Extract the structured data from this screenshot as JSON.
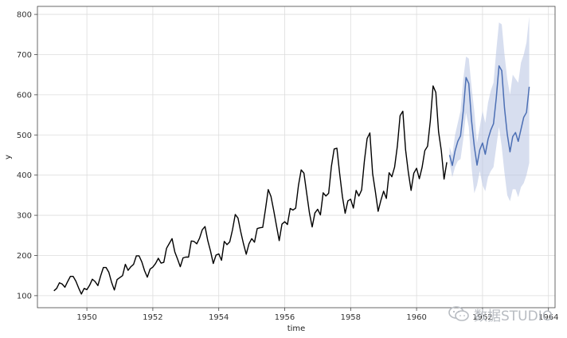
{
  "chart_data": {
    "type": "line",
    "title": "",
    "xlabel": "time",
    "ylabel": "y",
    "xlim": [
      1948.5,
      1964.2
    ],
    "ylim": [
      70,
      820
    ],
    "grid": true,
    "x_ticks": [
      1950,
      1952,
      1954,
      1956,
      1958,
      1960,
      1962,
      1964
    ],
    "x_tick_labels": [
      "1950",
      "1952",
      "1954",
      "1956",
      "1958",
      "1960",
      "1962",
      "1964"
    ],
    "y_ticks": [
      100,
      200,
      300,
      400,
      500,
      600,
      700,
      800
    ],
    "y_tick_labels": [
      "100",
      "200",
      "300",
      "400",
      "500",
      "600",
      "700",
      "800"
    ],
    "colors": {
      "actual": "#000000",
      "forecast": "#4c6fb4",
      "band": "#b6c3e2",
      "grid": "#dddddd"
    },
    "series": [
      {
        "role": "actual",
        "start_year": 1949,
        "start_month": 1,
        "step": "month",
        "values": [
          112,
          118,
          132,
          129,
          121,
          135,
          148,
          148,
          136,
          119,
          104,
          118,
          115,
          126,
          141,
          135,
          125,
          149,
          170,
          170,
          158,
          133,
          114,
          140,
          145,
          150,
          178,
          163,
          172,
          178,
          199,
          199,
          184,
          162,
          146,
          166,
          171,
          180,
          193,
          181,
          183,
          218,
          230,
          242,
          209,
          191,
          172,
          194,
          196,
          196,
          236,
          235,
          229,
          243,
          264,
          272,
          237,
          211,
          180,
          201,
          204,
          188,
          235,
          227,
          234,
          264,
          302,
          293,
          259,
          229,
          203,
          229,
          242,
          233,
          267,
          269,
          270,
          315,
          364,
          347,
          312,
          274,
          237,
          278,
          284,
          277,
          317,
          313,
          318,
          374,
          413,
          405,
          355,
          306,
          271,
          306,
          315,
          301,
          356,
          348,
          355,
          422,
          465,
          467,
          404,
          347,
          305,
          336,
          340,
          318,
          362,
          348,
          363,
          435,
          491,
          505,
          404,
          359,
          310,
          337,
          360,
          342,
          406,
          396,
          420,
          472,
          548,
          559,
          463,
          407,
          362,
          405,
          417,
          391,
          419,
          461,
          472,
          535,
          622,
          606,
          508,
          461,
          390,
          432
        ]
      },
      {
        "role": "forecast",
        "start_year": 1961,
        "start_month": 1,
        "step": "month",
        "values": [
          450,
          424,
          460,
          484,
          498,
          560,
          643,
          628,
          536,
          472,
          425,
          463,
          480,
          452,
          489,
          512,
          528,
          592,
          672,
          660,
          567,
          502,
          458,
          496,
          506,
          484,
          514,
          544,
          556,
          620
        ],
        "lower": [
          430,
          395,
          420,
          435,
          440,
          490,
          555,
          520,
          420,
          355,
          375,
          410,
          375,
          360,
          395,
          410,
          420,
          470,
          520,
          470,
          405,
          350,
          335,
          365,
          365,
          345,
          370,
          380,
          400,
          430
        ],
        "upper": [
          470,
          450,
          500,
          530,
          560,
          640,
          695,
          690,
          620,
          560,
          480,
          520,
          560,
          530,
          580,
          610,
          630,
          710,
          780,
          775,
          700,
          640,
          600,
          650,
          640,
          630,
          680,
          700,
          730,
          795
        ]
      }
    ]
  },
  "watermark": {
    "text": "数据STUDIO"
  }
}
